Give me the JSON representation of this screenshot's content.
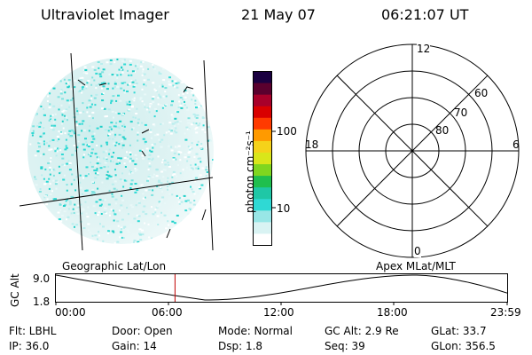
{
  "header": {
    "instrument": "Ultraviolet Imager",
    "date": "21 May 07",
    "time": "06:21:07 UT"
  },
  "colorbar": {
    "unit_label": "photon cm⁻²s⁻¹",
    "ticks": [
      "100",
      "10"
    ],
    "colors": [
      "#ffffff",
      "#d9f3f3",
      "#98e6e6",
      "#2fd9d4",
      "#1fc7a6",
      "#1fbf4e",
      "#7fd61f",
      "#d9e61a",
      "#f5d21a",
      "#ff9a00",
      "#ff3a00",
      "#d90000",
      "#a8002a",
      "#5a002e",
      "#1a0040"
    ]
  },
  "polar_plot": {
    "hour_labels": {
      "top": "12",
      "left": "18",
      "right": "6",
      "bottom": "0"
    },
    "lat_labels": [
      "60",
      "70",
      "80"
    ]
  },
  "timeline": {
    "ylabel": "GC Alt",
    "y_top": "9.0",
    "y_bottom": "1.8",
    "left_title": "Geographic Lat/Lon",
    "right_title": "Apex MLat/MLT",
    "x_ticks": [
      "00:00",
      "06:00",
      "12:00",
      "18:00",
      "23:59"
    ],
    "current_time_fraction": 0.264
  },
  "info": {
    "filter": "Flt: LBHL",
    "door": "Door: Open",
    "mode": "Mode: Normal",
    "gc_alt": "GC Alt: 2.9 Re",
    "glat": "GLat: 33.7",
    "ip": "IP: 36.0",
    "gain": "Gain: 14",
    "dsp": "Dsp:    1.8",
    "seq": "Seq: 39",
    "glon": "GLon: 356.5"
  }
}
